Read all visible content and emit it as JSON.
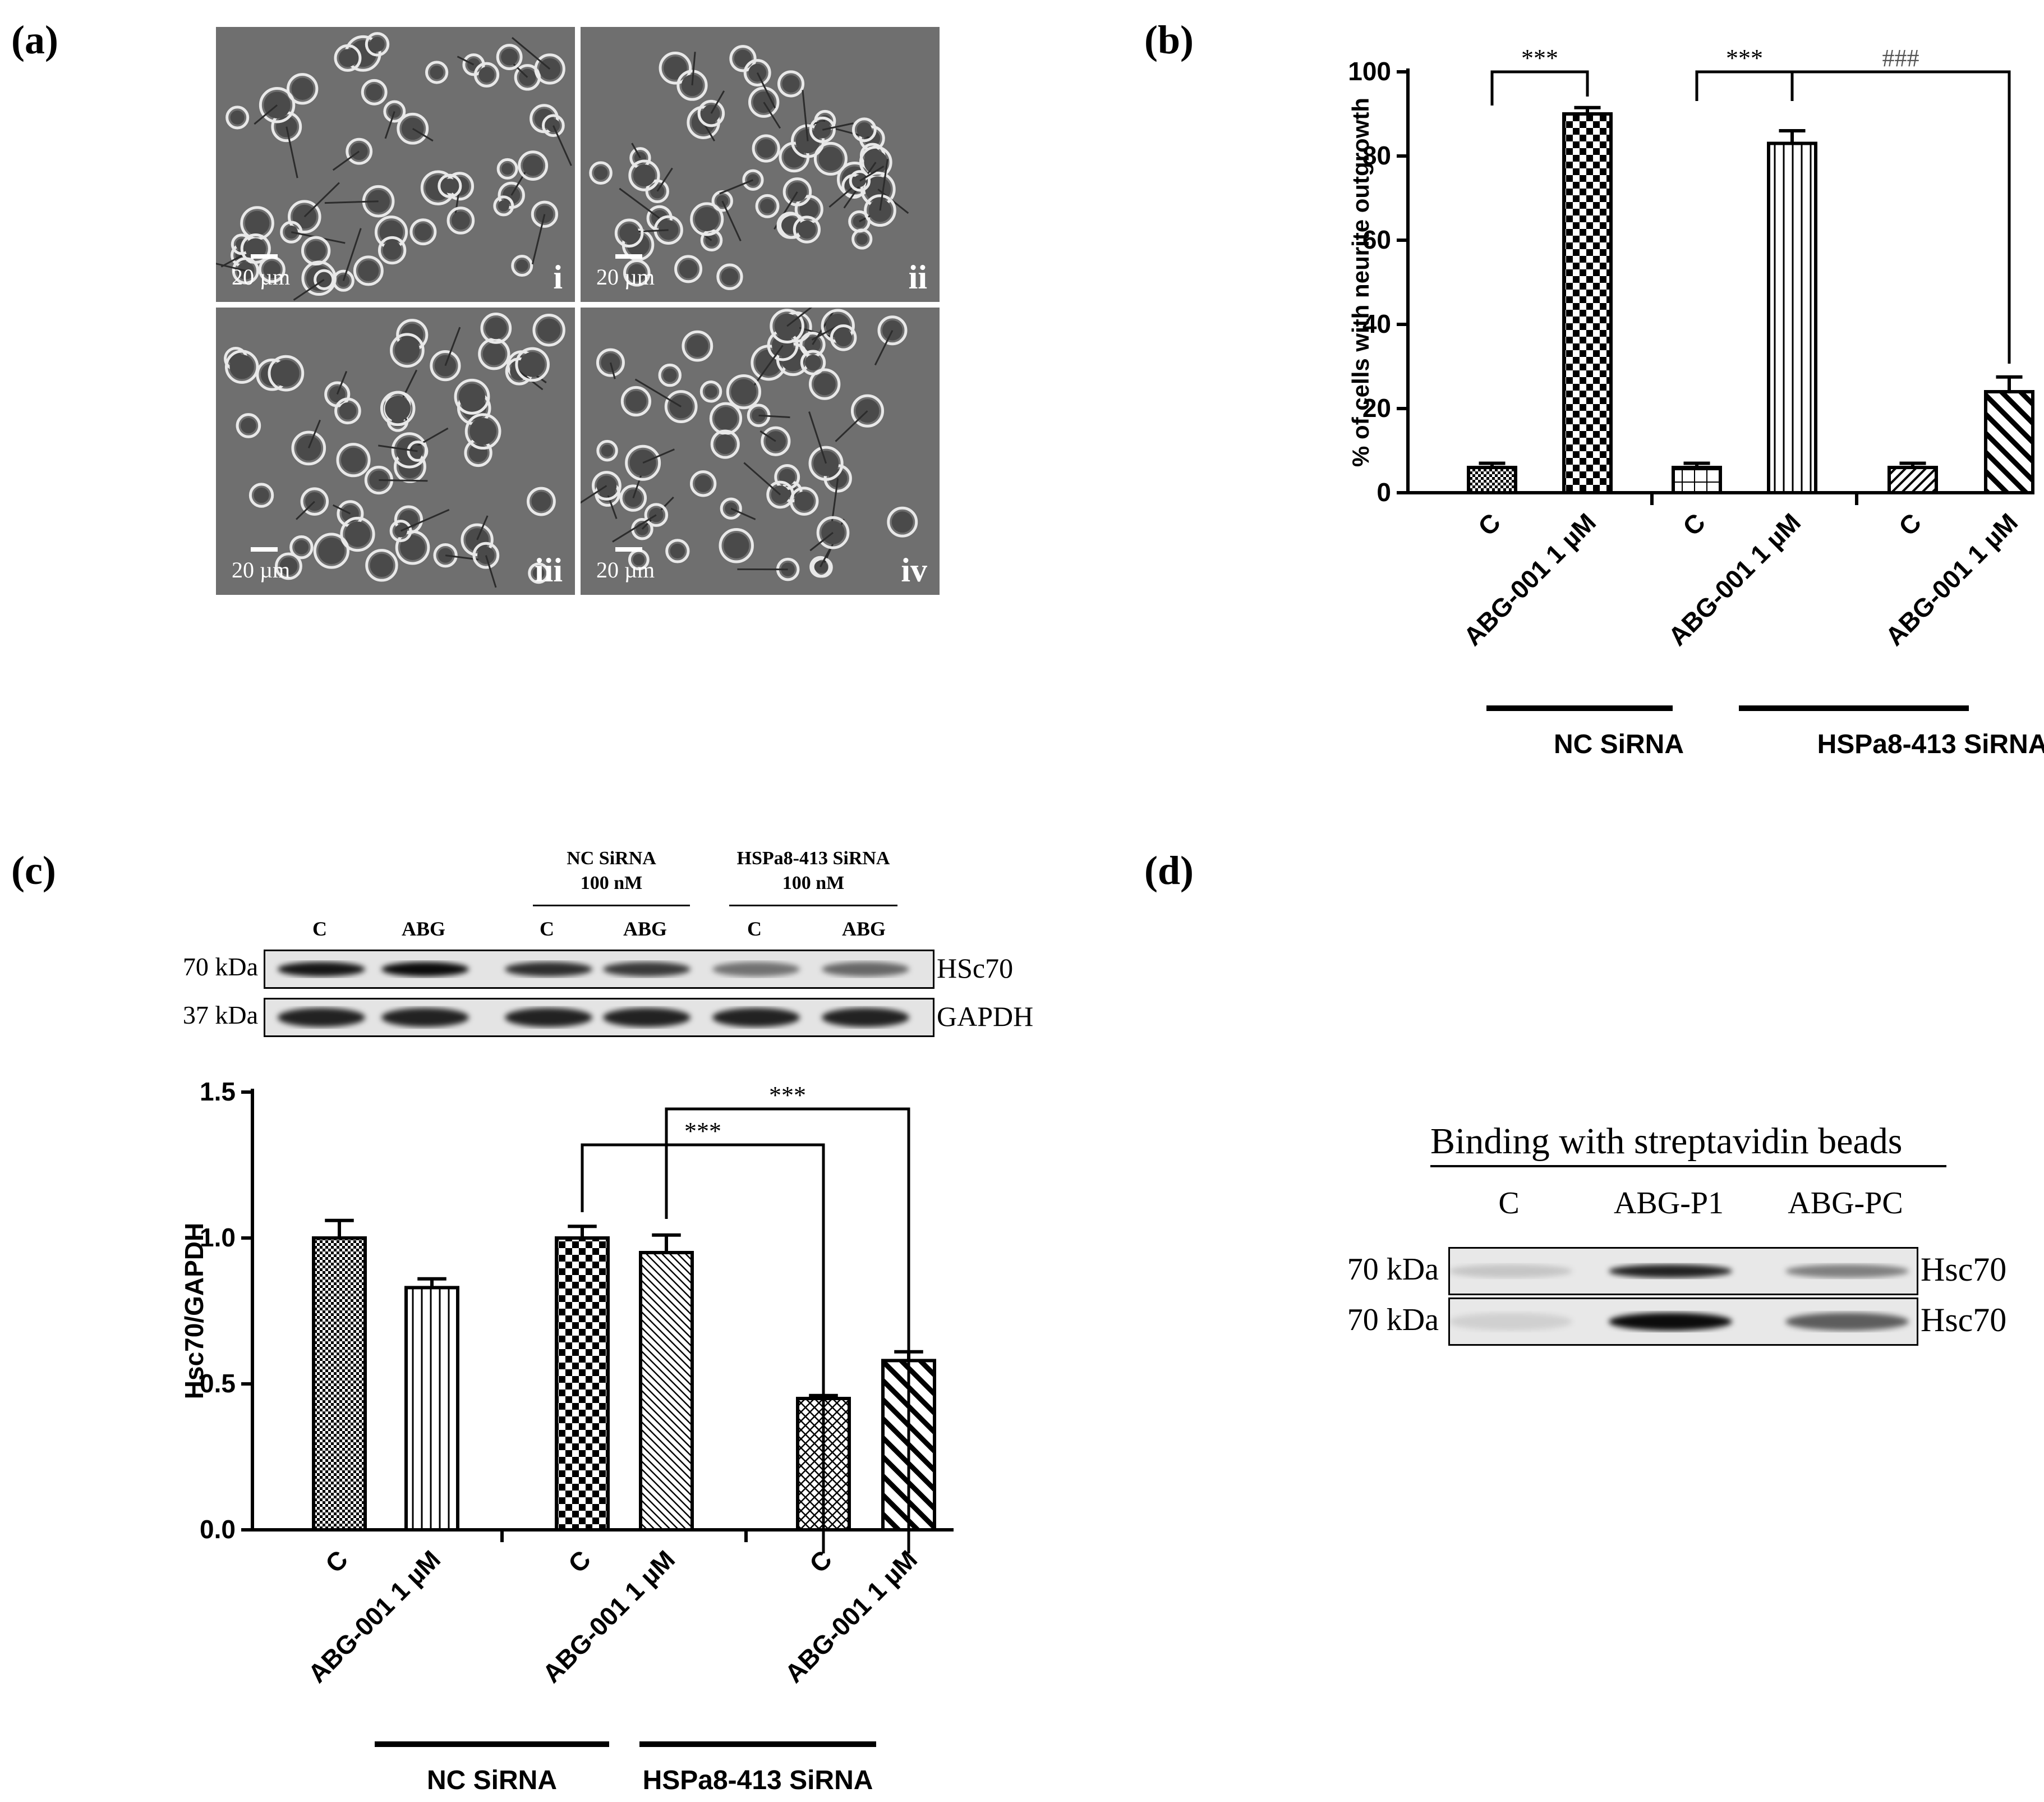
{
  "panels": {
    "a": {
      "label": "(a)",
      "images": [
        {
          "numeral": "i",
          "scale": "20 µm"
        },
        {
          "numeral": "ii",
          "scale": "20 µm"
        },
        {
          "numeral": "iii",
          "scale": "20 µm"
        },
        {
          "numeral": "iv",
          "scale": "20 µm"
        }
      ]
    },
    "b": {
      "label": "(b)"
    },
    "c": {
      "label": "(c)",
      "blot": {
        "group_headers": [
          {
            "line1": "NC SiRNA",
            "line2": "100 nM"
          },
          {
            "line1": "HSPa8-413 SiRNA",
            "line2": "100 nM"
          }
        ],
        "lanes": [
          "C",
          "ABG",
          "C",
          "ABG",
          "C",
          "ABG"
        ],
        "rows": [
          {
            "kda": "70 kDa",
            "protein": "HSc70"
          },
          {
            "kda": "37 kDa",
            "protein": "GAPDH"
          }
        ]
      }
    },
    "d": {
      "label": "(d)",
      "title": "Binding with streptavidin beads",
      "lanes": [
        "C",
        "ABG-P1",
        "ABG-PC"
      ],
      "rows": [
        {
          "kda": "70 kDa",
          "protein": "Hsc70"
        },
        {
          "kda": "70 kDa",
          "protein": "Hsc70"
        }
      ]
    }
  },
  "chart_data": [
    {
      "type": "bar",
      "panel": "b",
      "categories": [
        "C",
        "ABG-001 1 µM",
        "C",
        "ABG-001 1 µM",
        "C",
        "ABG-001 1 µM"
      ],
      "values": [
        6,
        90,
        6,
        83,
        6,
        24
      ],
      "errors": [
        1,
        1.5,
        1,
        3,
        1,
        3.5
      ],
      "groups": [
        {
          "label": "NC SiRNA",
          "span": [
            0,
            1
          ]
        },
        {
          "label": "HSPa8-413 SiRNA",
          "span": [
            2,
            5
          ]
        }
      ],
      "ylabel": "% of cells with neurite outgrowth",
      "ylim": [
        0,
        100
      ],
      "yticks": [
        "0",
        "20",
        "40",
        "60",
        "80",
        "100"
      ],
      "annotations": [
        {
          "text": "***",
          "from": 0,
          "to": 1
        },
        {
          "text": "***",
          "from": 2,
          "to": 3
        },
        {
          "text": "###",
          "from": 3,
          "to": 5
        }
      ]
    },
    {
      "type": "bar",
      "panel": "c",
      "categories": [
        "C",
        "ABG-001 1 µM",
        "C",
        "ABG-001 1 µM",
        "C",
        "ABG-001 1 µM"
      ],
      "values": [
        1.0,
        0.83,
        1.0,
        0.95,
        0.45,
        0.58
      ],
      "errors": [
        0.06,
        0.03,
        0.04,
        0.06,
        0.01,
        0.03
      ],
      "groups": [
        {
          "label": "NC SiRNA",
          "span": [
            2,
            3
          ]
        },
        {
          "label": "HSPa8-413 SiRNA",
          "span": [
            4,
            5
          ]
        }
      ],
      "ylabel": "Hsc70/GAPDH",
      "ylim": [
        0,
        1.5
      ],
      "yticks": [
        "0.0",
        "0.5",
        "1.0",
        "1.5"
      ],
      "annotations": [
        {
          "text": "***",
          "from": 2,
          "to": 4
        },
        {
          "text": "***",
          "from": 3,
          "to": 5
        }
      ]
    }
  ]
}
